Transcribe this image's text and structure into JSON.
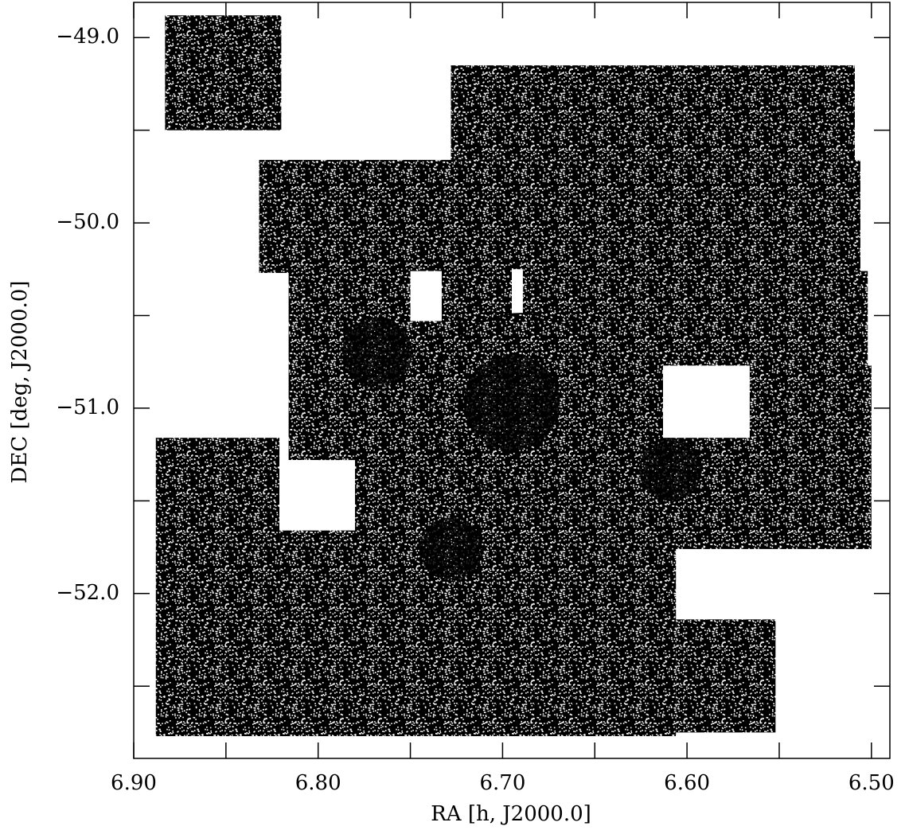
{
  "chart_data": {
    "type": "sky-coverage",
    "x_label": "RA [h, J2000.0]",
    "y_label": "DEC [deg, J2000.0]",
    "xlim": [
      6.9,
      6.49
    ],
    "ylim": [
      -52.89,
      -48.81
    ],
    "xticks": [
      {
        "value": 6.9,
        "label": "6.90"
      },
      {
        "value": 6.8,
        "label": "6.80"
      },
      {
        "value": 6.7,
        "label": "6.70"
      },
      {
        "value": 6.6,
        "label": "6.60"
      },
      {
        "value": 6.5,
        "label": "6.50"
      }
    ],
    "yticks": [
      {
        "value": -49,
        "label": "−49.0"
      },
      {
        "value": -50,
        "label": "−50.0"
      },
      {
        "value": -51,
        "label": "−51.0"
      },
      {
        "value": -52,
        "label": "−52.0"
      }
    ],
    "xminorticks": [
      6.85,
      6.75,
      6.65,
      6.55
    ],
    "yminorticks": [
      -49.5,
      -50.5,
      -51.5,
      -52.5
    ],
    "color": "#000000",
    "fields": [
      [
        6.883,
        6.82,
        -48.88,
        -49.5
      ],
      [
        6.728,
        6.509,
        -49.15,
        -49.66
      ],
      [
        6.832,
        6.506,
        -49.66,
        -50.27
      ],
      [
        6.816,
        6.502,
        -50.26,
        -51.29
      ],
      [
        6.61,
        6.5,
        -50.77,
        -51.76
      ],
      [
        6.888,
        6.821,
        -51.16,
        -52.77
      ],
      [
        6.821,
        6.606,
        -51.65,
        -52.77
      ],
      [
        6.8,
        6.606,
        -51.28,
        -51.66
      ],
      [
        6.606,
        6.552,
        -52.14,
        -52.75
      ]
    ],
    "gaps": [
      [
        6.75,
        6.733,
        -50.26,
        -50.53
      ],
      [
        6.695,
        6.689,
        -50.25,
        -50.49
      ],
      [
        6.613,
        6.566,
        -50.77,
        -51.16
      ],
      [
        6.816,
        6.8,
        -51.28,
        -51.44
      ],
      [
        6.821,
        6.78,
        -51.28,
        -51.66
      ]
    ],
    "clusters": [
      [
        6.695,
        -50.97,
        0.26
      ],
      [
        6.768,
        -50.7,
        0.19
      ],
      [
        6.728,
        -51.76,
        0.17
      ],
      [
        6.609,
        -51.33,
        0.17
      ]
    ],
    "ring": [
      6.69,
      -50.98,
      0.49
    ]
  }
}
